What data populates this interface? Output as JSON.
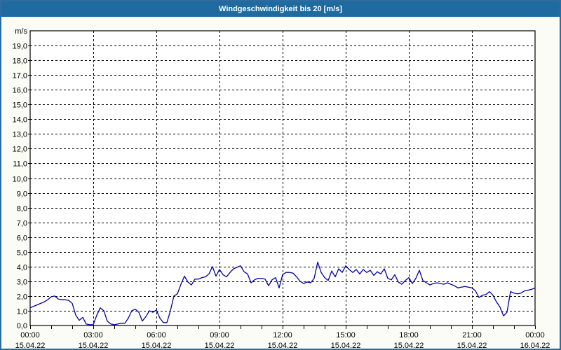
{
  "window": {
    "title": "Windgeschwindigkeit bis 20 [m/s]",
    "title_bar_color": "#1f6ba0",
    "border_color": "#2f6b9f",
    "background_color": "#fafcf5"
  },
  "chart_data": {
    "type": "line",
    "title": "Windgeschwindigkeit bis 20 [m/s]",
    "ylabel": "m/s",
    "xlabel": "",
    "ylim": [
      0,
      20
    ],
    "ytick_step": 1,
    "ytick_decimal_separator": ",",
    "xlim_hours": [
      0,
      24
    ],
    "x_major_tick_hours": 3,
    "x_minor_tick_hours": 1,
    "grid": "dashed",
    "legend": "none",
    "plot_bg_color": "#ffffff",
    "grid_color": "#000000",
    "text_color": "#000000",
    "line_color": "#0000a0",
    "x_tick_labels": [
      {
        "time": "00:00",
        "date": "15.04.22"
      },
      {
        "time": "03:00",
        "date": "15.04.22"
      },
      {
        "time": "06:00",
        "date": "15.04.22"
      },
      {
        "time": "09:00",
        "date": "15.04.22"
      },
      {
        "time": "12:00",
        "date": "15.04.22"
      },
      {
        "time": "15:00",
        "date": "15.04.22"
      },
      {
        "time": "18:00",
        "date": "15.04.22"
      },
      {
        "time": "21:00",
        "date": "15.04.22"
      },
      {
        "time": "00:00",
        "date": "16.04.22"
      }
    ],
    "series": [
      {
        "name": "Windgeschwindigkeit",
        "unit": "m/s",
        "start_hour": 0,
        "interval_minutes": 10,
        "values": [
          1.2,
          1.3,
          1.4,
          1.5,
          1.6,
          1.75,
          1.95,
          2.0,
          1.8,
          1.75,
          1.75,
          1.7,
          1.5,
          0.7,
          0.35,
          0.55,
          0.1,
          0.05,
          0.05,
          0.7,
          1.2,
          1.0,
          0.3,
          0.1,
          0.05,
          0.1,
          0.15,
          0.15,
          0.5,
          1.0,
          1.1,
          0.9,
          0.3,
          0.6,
          1.0,
          0.9,
          1.05,
          0.5,
          0.2,
          0.2,
          1.0,
          2.0,
          2.15,
          2.8,
          3.35,
          2.95,
          2.75,
          3.15,
          3.15,
          3.25,
          3.3,
          3.5,
          4.0,
          3.35,
          3.8,
          3.45,
          3.3,
          3.6,
          3.85,
          3.95,
          4.05,
          3.65,
          3.5,
          2.9,
          3.1,
          3.2,
          3.2,
          3.15,
          2.7,
          3.1,
          3.25,
          2.55,
          3.45,
          3.6,
          3.6,
          3.55,
          3.3,
          3.0,
          2.85,
          2.95,
          2.9,
          3.2,
          4.3,
          3.6,
          3.25,
          3.05,
          3.7,
          3.3,
          3.85,
          3.6,
          4.05,
          3.8,
          3.6,
          3.8,
          3.5,
          3.8,
          3.6,
          3.75,
          3.4,
          3.65,
          3.5,
          3.85,
          3.2,
          3.1,
          3.45,
          2.95,
          2.8,
          3.05,
          3.25,
          2.85,
          3.2,
          3.75,
          3.05,
          2.9,
          2.75,
          2.85,
          2.9,
          2.85,
          2.8,
          2.9,
          2.8,
          2.7,
          2.55,
          2.6,
          2.65,
          2.6,
          2.55,
          2.35,
          1.9,
          2.05,
          2.1,
          2.3,
          2.05,
          1.6,
          1.25,
          0.65,
          0.9,
          2.3,
          2.2,
          2.15,
          2.2,
          2.35,
          2.4,
          2.45,
          2.55
        ]
      }
    ]
  }
}
